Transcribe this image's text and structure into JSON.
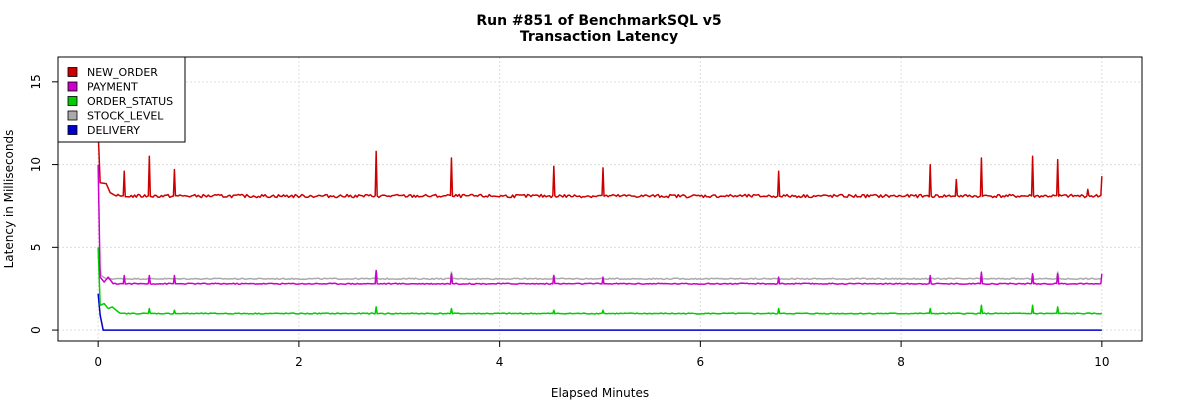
{
  "chart_data": {
    "type": "line",
    "title": "Run #851 of BenchmarkSQL v5",
    "subtitle": "Transaction Latency",
    "xlabel": "Elapsed Minutes",
    "ylabel": "Latency in Milliseconds",
    "xlim": [
      -0.4,
      10.4
    ],
    "ylim": [
      -0.66,
      16.5
    ],
    "x_ticks": [
      0,
      2,
      4,
      6,
      8,
      10
    ],
    "y_ticks": [
      0,
      5,
      10,
      15
    ],
    "grid": true,
    "legend_position": "top-left",
    "series": [
      {
        "name": "NEW_ORDER",
        "color": "#cc0000",
        "base": 8.1,
        "start": [
          [
            0.0,
            12.0
          ],
          [
            0.02,
            8.9
          ],
          [
            0.08,
            8.85
          ],
          [
            0.12,
            8.3
          ],
          [
            0.18,
            8.1
          ]
        ],
        "spikes": [
          [
            0.26,
            9.6
          ],
          [
            0.51,
            10.5
          ],
          [
            0.76,
            9.7
          ],
          [
            2.77,
            10.8
          ],
          [
            3.52,
            10.4
          ],
          [
            4.54,
            9.9
          ],
          [
            5.03,
            9.8
          ],
          [
            6.78,
            9.6
          ],
          [
            8.29,
            10.0
          ],
          [
            8.55,
            9.1
          ],
          [
            8.8,
            10.4
          ],
          [
            9.31,
            10.5
          ],
          [
            9.56,
            10.3
          ],
          [
            9.86,
            8.5
          ],
          [
            10.0,
            9.3
          ]
        ]
      },
      {
        "name": "PAYMENT",
        "color": "#cc00cc",
        "base": 2.8,
        "start": [
          [
            0.0,
            10.0
          ],
          [
            0.02,
            3.2
          ],
          [
            0.06,
            2.9
          ],
          [
            0.1,
            3.2
          ],
          [
            0.15,
            2.8
          ]
        ],
        "spikes": [
          [
            0.26,
            3.3
          ],
          [
            0.51,
            3.3
          ],
          [
            0.76,
            3.3
          ],
          [
            2.77,
            3.6
          ],
          [
            3.52,
            3.4
          ],
          [
            4.54,
            3.3
          ],
          [
            5.03,
            3.2
          ],
          [
            6.78,
            3.2
          ],
          [
            8.29,
            3.3
          ],
          [
            8.8,
            3.5
          ],
          [
            9.31,
            3.4
          ],
          [
            9.56,
            3.4
          ],
          [
            10.0,
            3.4
          ]
        ]
      },
      {
        "name": "ORDER_STATUS",
        "color": "#00cc00",
        "base": 1.0,
        "start": [
          [
            0.0,
            5.0
          ],
          [
            0.02,
            1.5
          ],
          [
            0.06,
            1.6
          ],
          [
            0.1,
            1.3
          ],
          [
            0.14,
            1.4
          ],
          [
            0.2,
            1.1
          ]
        ],
        "spikes": [
          [
            0.51,
            1.3
          ],
          [
            0.76,
            1.2
          ],
          [
            2.77,
            1.4
          ],
          [
            3.52,
            1.3
          ],
          [
            4.54,
            1.2
          ],
          [
            5.03,
            1.2
          ],
          [
            6.78,
            1.3
          ],
          [
            8.29,
            1.3
          ],
          [
            8.8,
            1.5
          ],
          [
            9.31,
            1.5
          ],
          [
            9.56,
            1.4
          ]
        ]
      },
      {
        "name": "STOCK_LEVEL",
        "color": "#aaaaaa",
        "base": 3.1,
        "start": [
          [
            0.0,
            4.5
          ],
          [
            0.03,
            3.3
          ],
          [
            0.08,
            3.1
          ]
        ],
        "spikes": [
          [
            2.77,
            3.6
          ],
          [
            3.52,
            3.5
          ],
          [
            4.54,
            3.3
          ],
          [
            8.8,
            3.4
          ],
          [
            9.31,
            3.4
          ],
          [
            9.56,
            3.5
          ]
        ]
      },
      {
        "name": "DELIVERY",
        "color": "#0000cc",
        "base": 0.0,
        "start": [
          [
            0.0,
            2.2
          ],
          [
            0.02,
            0.9
          ],
          [
            0.05,
            0.0
          ]
        ],
        "spikes": []
      }
    ]
  }
}
